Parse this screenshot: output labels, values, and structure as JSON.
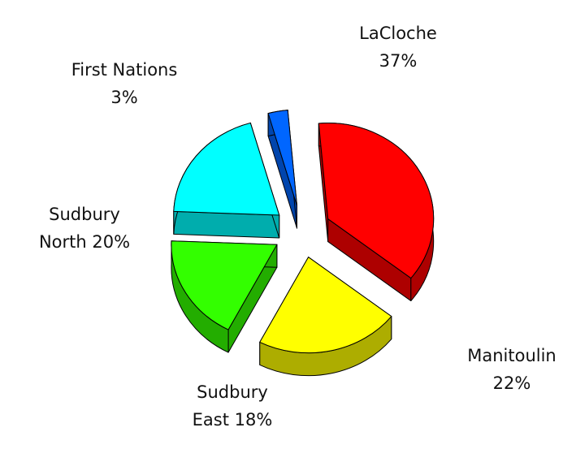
{
  "chart_data": {
    "type": "pie",
    "categories": [
      "LaCloche",
      "Manitoulin",
      "Sudbury East",
      "Sudbury North",
      "First Nations"
    ],
    "values": [
      37,
      22,
      18,
      20,
      3
    ],
    "value_labels": [
      "37%",
      "22%",
      "18%",
      "20%",
      "3%"
    ],
    "colors": [
      "#ff0000",
      "#ffff00",
      "#33ff00",
      "#00ffff",
      "#0066ff"
    ]
  }
}
